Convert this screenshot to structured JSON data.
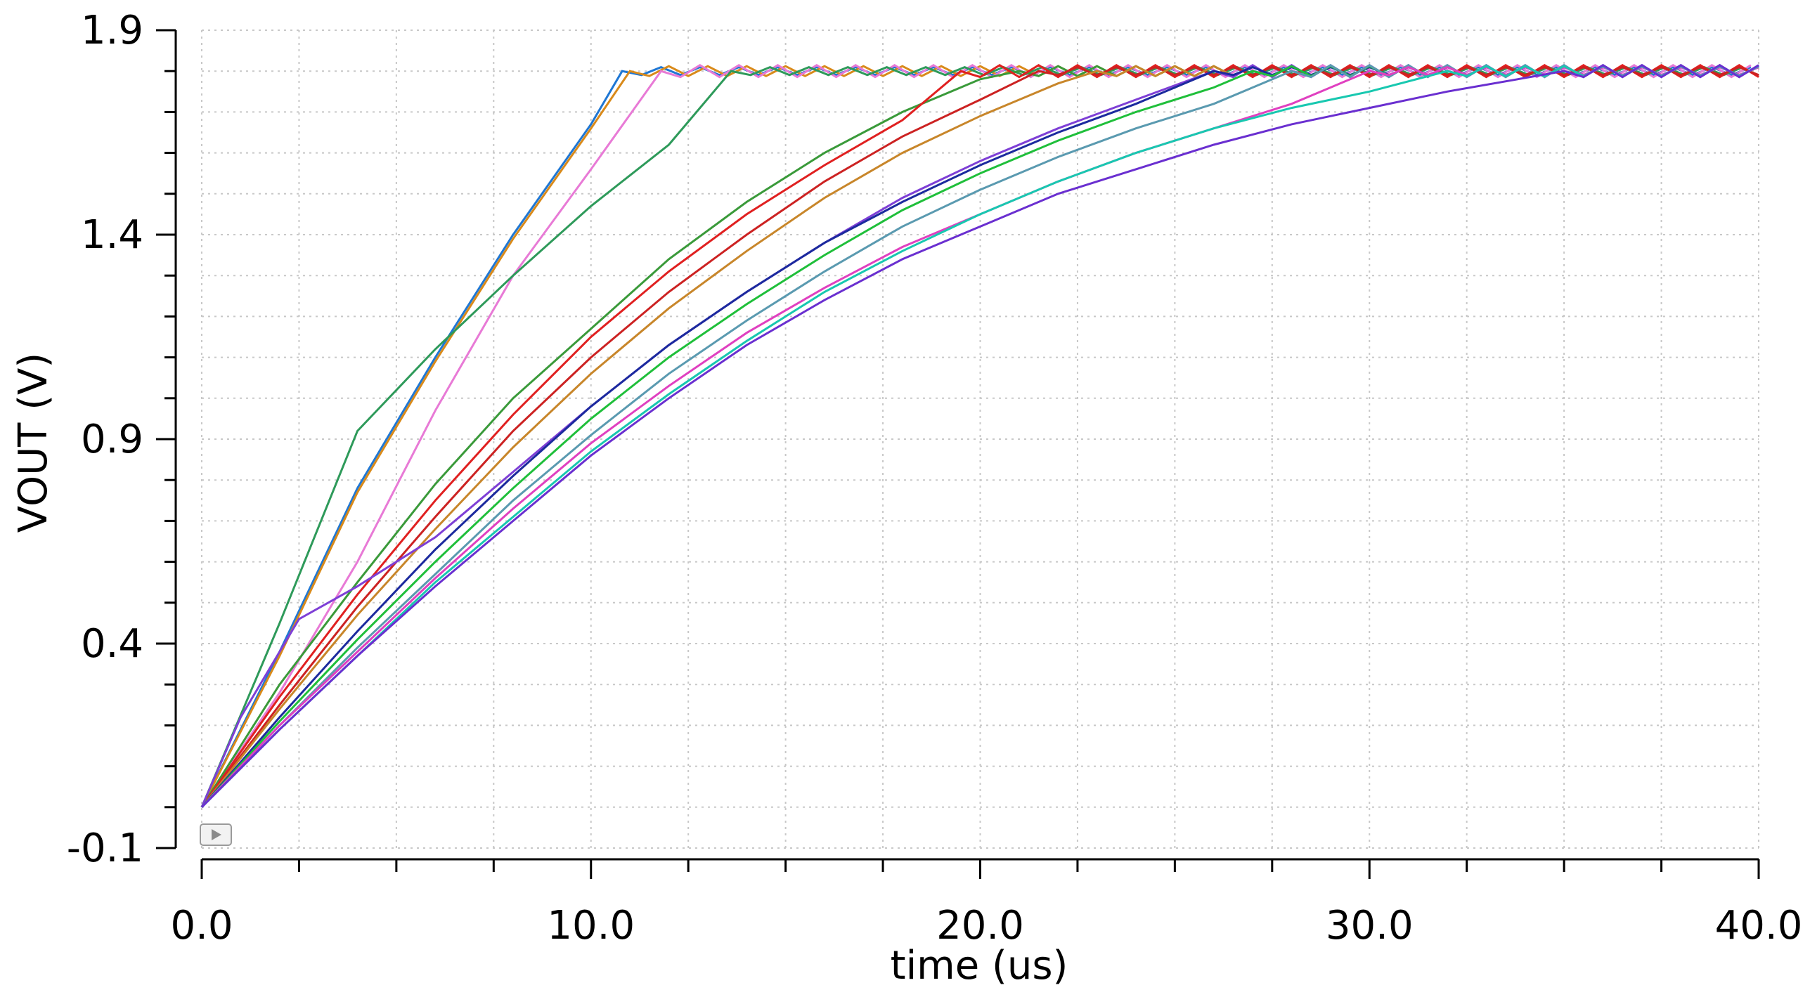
{
  "chart_data": {
    "type": "line",
    "xlabel": "time (us)",
    "ylabel": "VOUT (V)",
    "xlim": [
      0,
      40
    ],
    "ylim": [
      -0.1,
      1.9
    ],
    "x_ticks": [
      0,
      10,
      20,
      30,
      40
    ],
    "x_tick_labels": [
      "0.0",
      "10.0",
      "20.0",
      "30.0",
      "40.0"
    ],
    "y_ticks": [
      -0.1,
      0.4,
      0.9,
      1.4,
      1.9
    ],
    "y_tick_labels": [
      "-0.1",
      "0.4",
      "0.9",
      "1.4",
      "1.9"
    ],
    "grid": true,
    "settle_level": 1.8,
    "series": [
      {
        "color": "#1f77d4",
        "points": [
          [
            0,
            0.0
          ],
          [
            2,
            0.38
          ],
          [
            4,
            0.78
          ],
          [
            6,
            1.1
          ],
          [
            8,
            1.4
          ],
          [
            10,
            1.67
          ],
          [
            10.8,
            1.8
          ]
        ]
      },
      {
        "color": "#d98a1a",
        "points": [
          [
            0,
            0.0
          ],
          [
            2,
            0.37
          ],
          [
            4,
            0.77
          ],
          [
            6,
            1.09
          ],
          [
            8,
            1.39
          ],
          [
            10,
            1.66
          ],
          [
            11.0,
            1.8
          ]
        ]
      },
      {
        "color": "#e87ad6",
        "points": [
          [
            0,
            0.0
          ],
          [
            2,
            0.28
          ],
          [
            4,
            0.6
          ],
          [
            6,
            0.97
          ],
          [
            8,
            1.3
          ],
          [
            10,
            1.56
          ],
          [
            11.8,
            1.8
          ]
        ]
      },
      {
        "color": "#2e9a5a",
        "points": [
          [
            0,
            0.0
          ],
          [
            2,
            0.45
          ],
          [
            4,
            0.92
          ],
          [
            6,
            1.12
          ],
          [
            8,
            1.3
          ],
          [
            10,
            1.47
          ],
          [
            12,
            1.62
          ],
          [
            13.6,
            1.8
          ]
        ]
      },
      {
        "color": "#3a9a3a",
        "points": [
          [
            0,
            0.0
          ],
          [
            2,
            0.3
          ],
          [
            4,
            0.55
          ],
          [
            6,
            0.79
          ],
          [
            8,
            1.0
          ],
          [
            10,
            1.17
          ],
          [
            12,
            1.34
          ],
          [
            14,
            1.48
          ],
          [
            16,
            1.6
          ],
          [
            18,
            1.7
          ],
          [
            20,
            1.78
          ],
          [
            21,
            1.8
          ]
        ]
      },
      {
        "color": "#e02020",
        "points": [
          [
            0,
            0.0
          ],
          [
            2,
            0.27
          ],
          [
            4,
            0.52
          ],
          [
            6,
            0.75
          ],
          [
            8,
            0.96
          ],
          [
            10,
            1.15
          ],
          [
            12,
            1.31
          ],
          [
            14,
            1.45
          ],
          [
            16,
            1.57
          ],
          [
            18,
            1.68
          ],
          [
            19.5,
            1.8
          ]
        ]
      },
      {
        "color": "#cc2222",
        "points": [
          [
            0,
            0.0
          ],
          [
            2,
            0.25
          ],
          [
            4,
            0.49
          ],
          [
            6,
            0.71
          ],
          [
            8,
            0.92
          ],
          [
            10,
            1.1
          ],
          [
            12,
            1.26
          ],
          [
            14,
            1.4
          ],
          [
            16,
            1.53
          ],
          [
            18,
            1.64
          ],
          [
            20,
            1.73
          ],
          [
            21.5,
            1.8
          ]
        ]
      },
      {
        "color": "#c8862a",
        "points": [
          [
            0,
            0.0
          ],
          [
            2,
            0.24
          ],
          [
            4,
            0.47
          ],
          [
            6,
            0.68
          ],
          [
            8,
            0.88
          ],
          [
            10,
            1.06
          ],
          [
            12,
            1.22
          ],
          [
            14,
            1.36
          ],
          [
            16,
            1.49
          ],
          [
            18,
            1.6
          ],
          [
            20,
            1.69
          ],
          [
            22,
            1.77
          ],
          [
            23,
            1.8
          ]
        ]
      },
      {
        "color": "#7e3fd6",
        "points": [
          [
            0,
            0.0
          ],
          [
            1,
            0.22
          ],
          [
            2.5,
            0.46
          ],
          [
            4,
            0.54
          ],
          [
            6,
            0.66
          ],
          [
            8,
            0.82
          ],
          [
            10,
            0.98
          ],
          [
            12,
            1.13
          ],
          [
            14,
            1.26
          ],
          [
            16,
            1.38
          ],
          [
            18,
            1.49
          ],
          [
            20,
            1.58
          ],
          [
            22,
            1.66
          ],
          [
            24,
            1.73
          ],
          [
            26,
            1.8
          ]
        ]
      },
      {
        "color": "#1c2a9e",
        "points": [
          [
            0,
            0.0
          ],
          [
            2,
            0.22
          ],
          [
            4,
            0.43
          ],
          [
            6,
            0.63
          ],
          [
            8,
            0.81
          ],
          [
            10,
            0.98
          ],
          [
            12,
            1.13
          ],
          [
            14,
            1.26
          ],
          [
            16,
            1.38
          ],
          [
            18,
            1.48
          ],
          [
            20,
            1.57
          ],
          [
            22,
            1.65
          ],
          [
            24,
            1.72
          ],
          [
            26,
            1.8
          ]
        ]
      },
      {
        "color": "#1fbf3a",
        "points": [
          [
            0,
            0.0
          ],
          [
            2,
            0.21
          ],
          [
            4,
            0.41
          ],
          [
            6,
            0.6
          ],
          [
            8,
            0.78
          ],
          [
            10,
            0.95
          ],
          [
            12,
            1.1
          ],
          [
            14,
            1.23
          ],
          [
            16,
            1.35
          ],
          [
            18,
            1.46
          ],
          [
            20,
            1.55
          ],
          [
            22,
            1.63
          ],
          [
            24,
            1.7
          ],
          [
            26,
            1.76
          ],
          [
            27,
            1.8
          ]
        ]
      },
      {
        "color": "#5a9ab0",
        "points": [
          [
            0,
            0.0
          ],
          [
            2,
            0.2
          ],
          [
            4,
            0.39
          ],
          [
            6,
            0.57
          ],
          [
            8,
            0.75
          ],
          [
            10,
            0.91
          ],
          [
            12,
            1.06
          ],
          [
            14,
            1.19
          ],
          [
            16,
            1.31
          ],
          [
            18,
            1.42
          ],
          [
            20,
            1.51
          ],
          [
            22,
            1.59
          ],
          [
            24,
            1.66
          ],
          [
            26,
            1.72
          ],
          [
            28,
            1.8
          ]
        ]
      },
      {
        "color": "#e040c0",
        "points": [
          [
            0,
            0.0
          ],
          [
            2,
            0.2
          ],
          [
            4,
            0.38
          ],
          [
            6,
            0.56
          ],
          [
            8,
            0.73
          ],
          [
            10,
            0.89
          ],
          [
            12,
            1.03
          ],
          [
            14,
            1.16
          ],
          [
            16,
            1.27
          ],
          [
            18,
            1.37
          ],
          [
            20,
            1.45
          ],
          [
            22,
            1.53
          ],
          [
            24,
            1.6
          ],
          [
            26,
            1.66
          ],
          [
            28,
            1.72
          ],
          [
            30,
            1.8
          ]
        ]
      },
      {
        "color": "#18c8b0",
        "points": [
          [
            0,
            0.0
          ],
          [
            2,
            0.19
          ],
          [
            4,
            0.37
          ],
          [
            6,
            0.55
          ],
          [
            8,
            0.71
          ],
          [
            10,
            0.87
          ],
          [
            12,
            1.01
          ],
          [
            14,
            1.14
          ],
          [
            16,
            1.26
          ],
          [
            18,
            1.36
          ],
          [
            20,
            1.45
          ],
          [
            22,
            1.53
          ],
          [
            24,
            1.6
          ],
          [
            26,
            1.66
          ],
          [
            28,
            1.71
          ],
          [
            30,
            1.75
          ],
          [
            32,
            1.8
          ]
        ]
      },
      {
        "color": "#6a2fd0",
        "points": [
          [
            0,
            0.0
          ],
          [
            2,
            0.19
          ],
          [
            4,
            0.37
          ],
          [
            6,
            0.54
          ],
          [
            8,
            0.7
          ],
          [
            10,
            0.86
          ],
          [
            12,
            1.0
          ],
          [
            14,
            1.13
          ],
          [
            16,
            1.24
          ],
          [
            18,
            1.34
          ],
          [
            20,
            1.42
          ],
          [
            22,
            1.5
          ],
          [
            24,
            1.56
          ],
          [
            26,
            1.62
          ],
          [
            28,
            1.67
          ],
          [
            30,
            1.71
          ],
          [
            32,
            1.75
          ],
          [
            35,
            1.8
          ]
        ]
      }
    ]
  }
}
